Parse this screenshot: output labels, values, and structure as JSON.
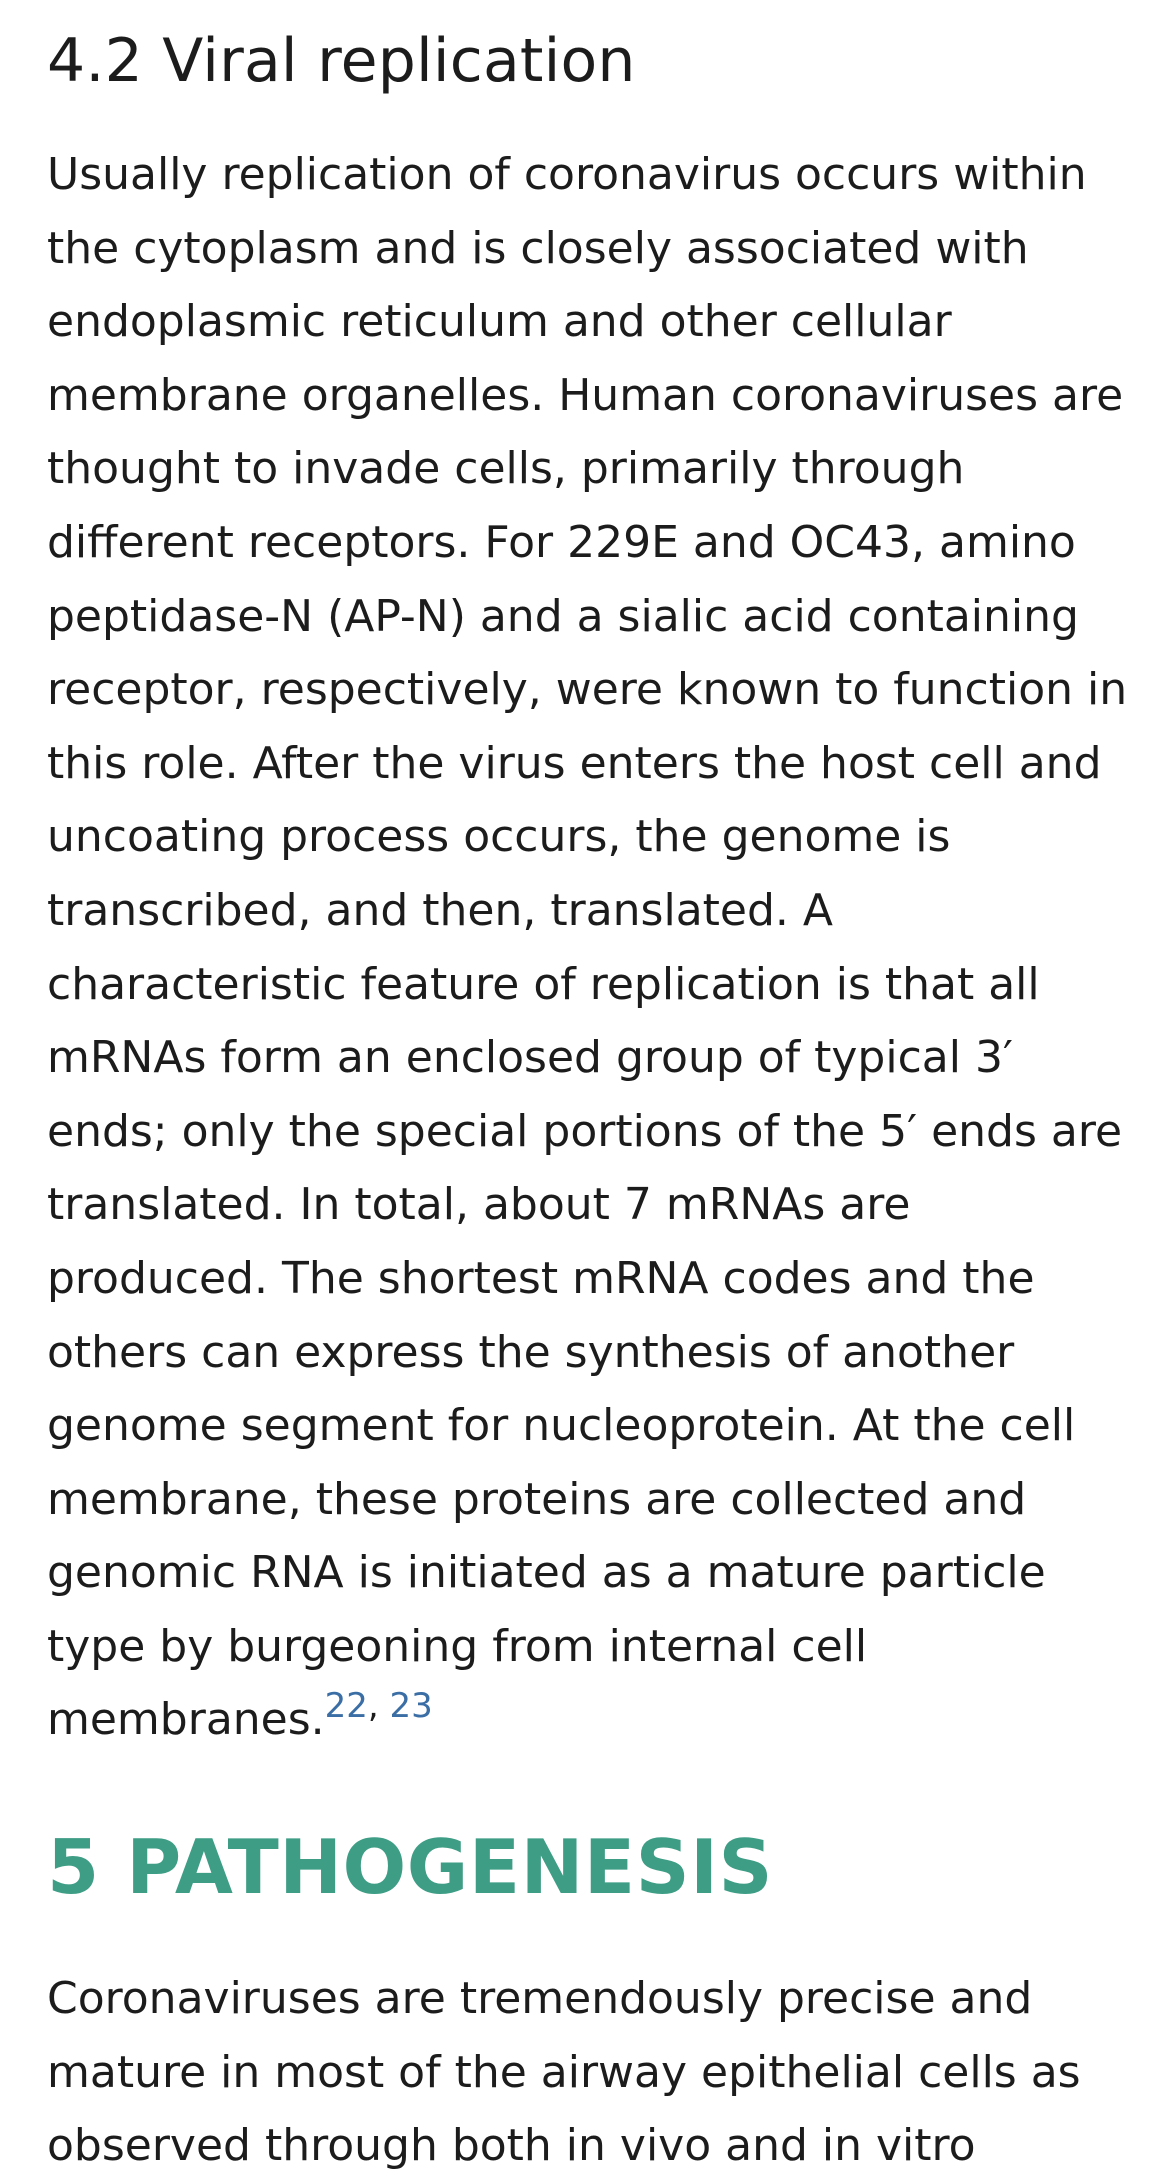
{
  "subsection": {
    "title": "4.2 Viral replication",
    "paragraph": "Usually replication of coronavirus occurs within the cytoplasm and is closely associated with endoplasmic reticulum and other cellular membrane organelles. Human coronaviruses are thought to invade cells, primarily through different receptors. For 229E and OC43, amino peptidase-N (AP-N) and a sialic acid containing receptor, respectively, were known to function in this role. After the virus enters the host cell and uncoating process occurs, the genome is transcribed, and then, translated. A characteristic feature of replication is that all mRNAs form an enclosed group of typical 3′ ends; only the special portions of the 5′ ends are translated. In total, about 7 mRNAs are produced. The shortest mRNA codes and the others can express the synthesis of another genome segment for nucleoprotein. At the cell membrane, these proteins are collected and genomic RNA is initiated as a mature particle type by burgeoning from internal cell membranes.",
    "citations": [
      "22",
      "23"
    ],
    "citation_separator": ", "
  },
  "section": {
    "title": "5 PATHOGENESIS",
    "paragraph": "Coronaviruses are tremendously precise and mature in most of the airway epithelial cells as observed through both in vivo and in vitro"
  },
  "colors": {
    "text": "#1c1c1c",
    "section_heading": "#3e9d85",
    "citation_link": "#3a6ea5"
  }
}
